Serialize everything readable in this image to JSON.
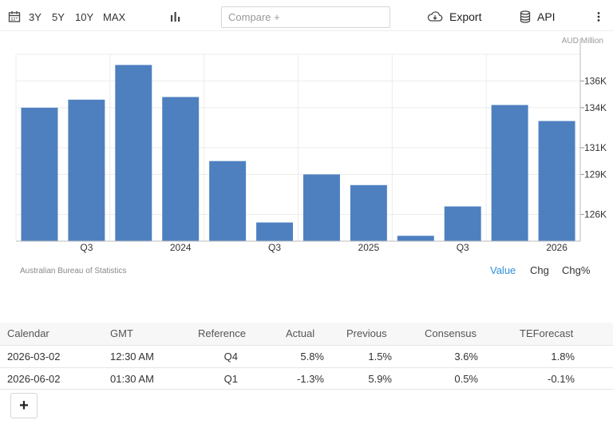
{
  "toolbar": {
    "ranges": [
      "3Y",
      "5Y",
      "10Y",
      "MAX"
    ],
    "compare_placeholder": "Compare +",
    "export_label": "Export",
    "api_label": "API"
  },
  "chart_data": {
    "type": "bar",
    "unit_label": "AUD Million",
    "x_tick_labels": [
      "Q3",
      "2024",
      "Q3",
      "2025",
      "Q3",
      "2026"
    ],
    "values": [
      134000,
      134600,
      137200,
      134800,
      130000,
      125400,
      129000,
      128200,
      124400,
      126600,
      134200,
      133000
    ],
    "ylim": [
      124000,
      138000
    ],
    "y_ticks": [
      126000,
      129000,
      131000,
      134000,
      136000
    ],
    "y_tick_labels": [
      "126K",
      "129K",
      "131K",
      "134K",
      "136K"
    ],
    "color": "#4e80c0",
    "grid": true
  },
  "source": "Australian Bureau of Statistics",
  "modes": [
    "Value",
    "Chg",
    "Chg%"
  ],
  "active_mode_color": "#2f8fdc",
  "table": {
    "headers": [
      "Calendar",
      "GMT",
      "Reference",
      "Actual",
      "Previous",
      "Consensus",
      "TEForecast"
    ],
    "rows": [
      [
        "2026-03-02",
        "12:30 AM",
        "Q4",
        "5.8%",
        "1.5%",
        "3.6%",
        "1.8%"
      ],
      [
        "2026-06-02",
        "01:30 AM",
        "Q1",
        "-1.3%",
        "5.9%",
        "0.5%",
        "-0.1%"
      ]
    ]
  },
  "add_label": "+"
}
